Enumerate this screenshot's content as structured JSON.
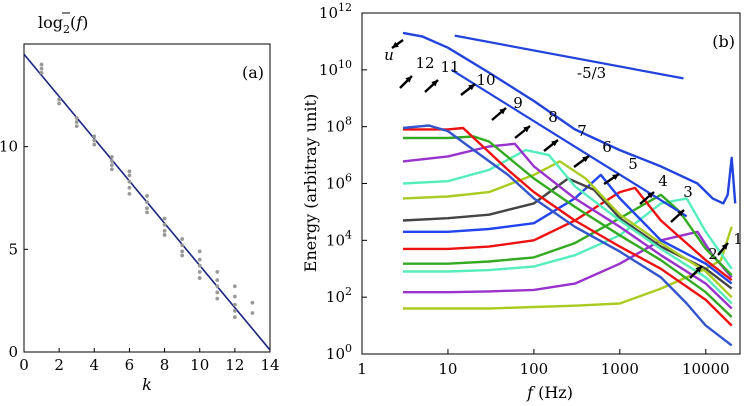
{
  "chart_data": [
    {
      "panel": "(a)",
      "type": "scatter",
      "ylabel_base": "log",
      "ylabel_sub": "2",
      "ylabel_arg": "f",
      "xlabel": "k",
      "xlim": [
        0,
        14
      ],
      "ylim": [
        0,
        15
      ],
      "xticks": [
        "0",
        "2",
        "4",
        "6",
        "8",
        "10",
        "12",
        "14"
      ],
      "yticks": [
        "0",
        "5",
        "10"
      ],
      "fit_line": {
        "x": [
          0,
          14
        ],
        "y": [
          14.5,
          0.1
        ]
      },
      "points": [
        [
          1,
          14.0
        ],
        [
          1,
          13.8
        ],
        [
          1,
          13.6
        ],
        [
          2,
          12.3
        ],
        [
          2,
          12.1
        ],
        [
          3,
          11.4
        ],
        [
          3,
          11.2
        ],
        [
          3,
          11.0
        ],
        [
          4,
          10.5
        ],
        [
          4,
          10.3
        ],
        [
          4,
          10.1
        ],
        [
          5,
          9.5
        ],
        [
          5,
          9.3
        ],
        [
          5,
          9.1
        ],
        [
          5,
          8.9
        ],
        [
          6,
          8.8
        ],
        [
          6,
          8.6
        ],
        [
          6,
          8.3
        ],
        [
          6,
          8.0
        ],
        [
          6,
          7.7
        ],
        [
          7,
          7.6
        ],
        [
          7,
          7.3
        ],
        [
          7,
          7.0
        ],
        [
          7,
          6.8
        ],
        [
          8,
          6.5
        ],
        [
          8,
          6.2
        ],
        [
          8,
          5.9
        ],
        [
          8,
          5.7
        ],
        [
          9,
          5.5
        ],
        [
          9,
          5.2
        ],
        [
          9,
          4.9
        ],
        [
          9,
          4.7
        ],
        [
          10,
          4.9
        ],
        [
          10,
          4.5
        ],
        [
          10,
          4.2
        ],
        [
          10,
          3.9
        ],
        [
          10,
          3.6
        ],
        [
          11,
          3.9
        ],
        [
          11,
          3.5
        ],
        [
          11,
          3.2
        ],
        [
          11,
          2.9
        ],
        [
          11,
          2.6
        ],
        [
          12,
          3.2
        ],
        [
          12,
          2.7
        ],
        [
          12,
          2.3
        ],
        [
          12,
          2.0
        ],
        [
          12,
          1.7
        ],
        [
          13,
          2.4
        ],
        [
          13,
          1.9
        ]
      ],
      "point_color": "#999999",
      "line_color": "#1a237e"
    },
    {
      "panel": "(b)",
      "type": "line",
      "xlabel_var": "f",
      "xlabel_unit": " (Hz)",
      "ylabel": "Energy (arbitray unit)",
      "xscale": "log",
      "yscale": "log",
      "xlim": [
        1,
        25000
      ],
      "ylim": [
        1,
        1000000000000
      ],
      "xticks": [
        {
          "v": 1,
          "label": "1"
        },
        {
          "v": 10,
          "label": "10"
        },
        {
          "v": 100,
          "label": "100"
        },
        {
          "v": 1000,
          "label": "1000"
        },
        {
          "v": 10000,
          "label": "10000"
        }
      ],
      "yticks": [
        {
          "v": 1,
          "base": "10",
          "exp": "0"
        },
        {
          "v": 100,
          "base": "10",
          "exp": "2"
        },
        {
          "v": 10000,
          "base": "10",
          "exp": "4"
        },
        {
          "v": 1000000,
          "base": "10",
          "exp": "6"
        },
        {
          "v": 100000000,
          "base": "10",
          "exp": "8"
        },
        {
          "v": 10000000000,
          "base": "10",
          "exp": "10"
        },
        {
          "v": 1000000000000,
          "base": "10",
          "exp": "12"
        }
      ],
      "slope_label": "-5/3",
      "slope_lines": [
        {
          "x": [
            12,
            5500
          ],
          "y": [
            160000000000,
            5000000000
          ]
        },
        {
          "x": [
            11,
            6000
          ],
          "y": [
            10000000000,
            70000
          ]
        }
      ],
      "series": [
        {
          "label": "u",
          "color": "#2244dd",
          "x": [
            3,
            5,
            10,
            30,
            100,
            300,
            1000,
            3000,
            8000,
            12000,
            16000,
            18000,
            20000,
            22000
          ],
          "y": [
            200000000000,
            150000000000,
            60000000000,
            8000000000,
            800000000,
            80000000,
            15000000,
            4000000,
            1000000,
            300000,
            200000,
            400000,
            8000000,
            200000
          ]
        },
        {
          "label": "12",
          "color": "#3355cc",
          "x": [
            3,
            6,
            10,
            20,
            50,
            100,
            300,
            1000,
            3000,
            6000,
            10000,
            20000
          ],
          "y": [
            90000000,
            110000000,
            70000000,
            15000000,
            2000000,
            300000,
            30000,
            4000,
            500,
            60,
            10,
            2
          ]
        },
        {
          "label": "11",
          "color": "#ee1111",
          "x": [
            3,
            10,
            15,
            20,
            50,
            100,
            300,
            1000,
            3000,
            10000,
            20000
          ],
          "y": [
            80000000,
            80000000,
            90000000,
            40000000,
            3000000,
            500000,
            50000,
            6000,
            1000,
            80,
            10
          ]
        },
        {
          "label": "10",
          "color": "#33aa22",
          "x": [
            3,
            10,
            20,
            30,
            100,
            300,
            1000,
            3000,
            10000,
            20000
          ],
          "y": [
            40000000,
            40000000,
            45000000,
            30000000,
            1500000,
            150000,
            15000,
            2000,
            150,
            20
          ]
        },
        {
          "label": "9",
          "color": "#9933cc",
          "x": [
            3,
            10,
            30,
            60,
            100,
            300,
            1000,
            3000,
            10000,
            20000
          ],
          "y": [
            6000000,
            9000000,
            20000000,
            25000000,
            4000000,
            300000,
            30000,
            3000,
            300,
            40
          ]
        },
        {
          "label": "8",
          "color": "#55eebb",
          "x": [
            3,
            10,
            30,
            80,
            150,
            300,
            1000,
            3000,
            10000,
            20000
          ],
          "y": [
            1000000,
            1200000,
            3000000,
            15000000,
            10000000,
            800000,
            50000,
            5000,
            500,
            60
          ]
        },
        {
          "label": "7",
          "color": "#aacc22",
          "x": [
            3,
            10,
            30,
            100,
            200,
            400,
            1000,
            3000,
            10000,
            20000
          ],
          "y": [
            300000,
            350000,
            500000,
            2000000,
            6000000,
            1500000,
            80000,
            8000,
            800,
            100
          ]
        },
        {
          "label": "6",
          "color": "#444444",
          "x": [
            3,
            10,
            30,
            100,
            250,
            500,
            1000,
            3000,
            10000,
            20000
          ],
          "y": [
            50000,
            60000,
            80000,
            200000,
            1500000,
            600000,
            60000,
            6000,
            1000,
            200
          ]
        },
        {
          "label": "5",
          "color": "#2244ee",
          "x": [
            3,
            10,
            30,
            100,
            300,
            600,
            1000,
            3000,
            10000,
            20000
          ],
          "y": [
            20000,
            20000,
            25000,
            40000,
            300000,
            2000000,
            300000,
            10000,
            1500,
            300
          ]
        },
        {
          "label": "4",
          "color": "#ee1111",
          "x": [
            3,
            10,
            30,
            100,
            300,
            1000,
            1500,
            3000,
            10000,
            20000
          ],
          "y": [
            5000,
            5000,
            6000,
            10000,
            50000,
            500000,
            700000,
            50000,
            2000,
            400
          ]
        },
        {
          "label": "3",
          "color": "#33aa22",
          "x": [
            3,
            10,
            30,
            100,
            300,
            1000,
            3000,
            5000,
            10000,
            20000
          ],
          "y": [
            1500,
            1500,
            1800,
            2500,
            8000,
            60000,
            400000,
            100000,
            5000,
            600
          ]
        },
        {
          "label": "",
          "color": "#55eebb",
          "x": [
            3,
            10,
            30,
            100,
            300,
            1000,
            3000,
            6000,
            10000,
            20000
          ],
          "y": [
            800,
            800,
            900,
            1200,
            3000,
            15000,
            200000,
            300000,
            20000,
            1000
          ]
        },
        {
          "label": "",
          "color": "#9933cc",
          "x": [
            3,
            10,
            30,
            100,
            300,
            1000,
            3000,
            8000,
            12000,
            20000
          ],
          "y": [
            150,
            150,
            160,
            180,
            300,
            1500,
            10000,
            20000,
            3000,
            500
          ]
        },
        {
          "label": "2",
          "color": "#aacc22",
          "x": [
            3,
            10,
            30,
            100,
            300,
            1000,
            3000,
            10000,
            15000,
            20000
          ],
          "y": [
            40,
            40,
            40,
            45,
            50,
            60,
            200,
            1000,
            2000,
            30000
          ]
        }
      ],
      "annotations": [
        "12",
        "11",
        "10",
        "9",
        "8",
        "7",
        "6",
        "5",
        "4",
        "3",
        "2",
        "1",
        "u"
      ]
    }
  ]
}
